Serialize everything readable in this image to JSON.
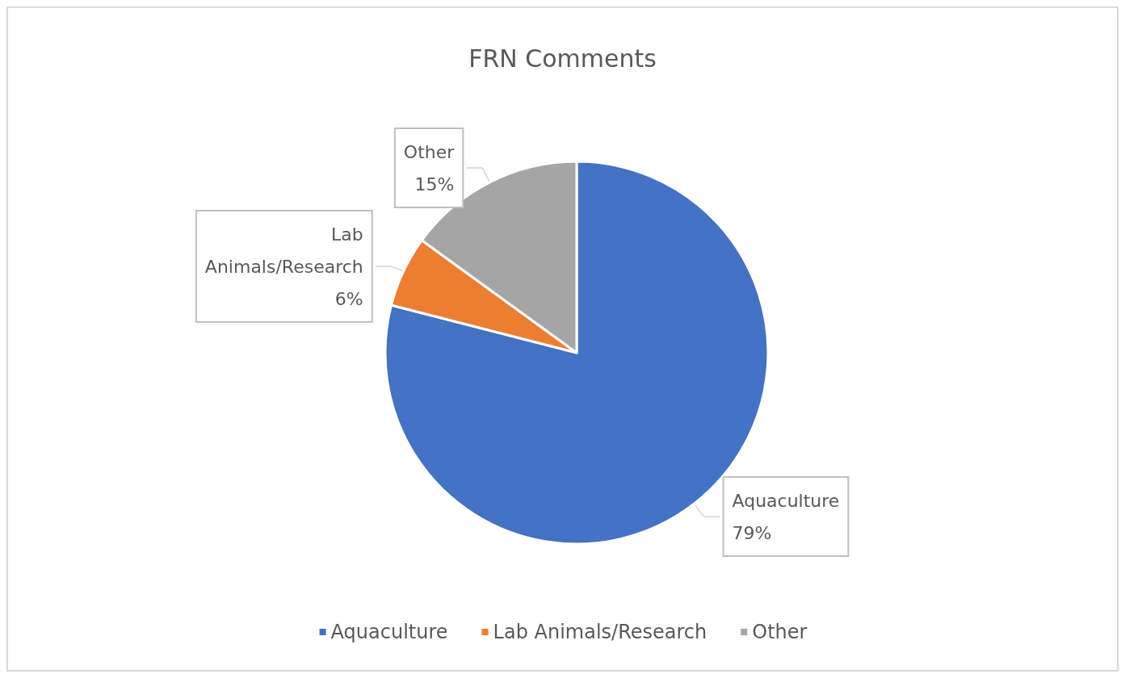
{
  "chart_data": {
    "type": "pie",
    "title": "FRN Comments",
    "categories": [
      "Aquaculture",
      "Lab Animals/Research",
      "Other"
    ],
    "values": [
      79,
      6,
      15
    ],
    "value_labels": [
      "79%",
      "6%",
      "15%"
    ],
    "colors": [
      "#4472c4",
      "#ed7d31",
      "#a5a5a5"
    ],
    "legend": "bottom"
  }
}
